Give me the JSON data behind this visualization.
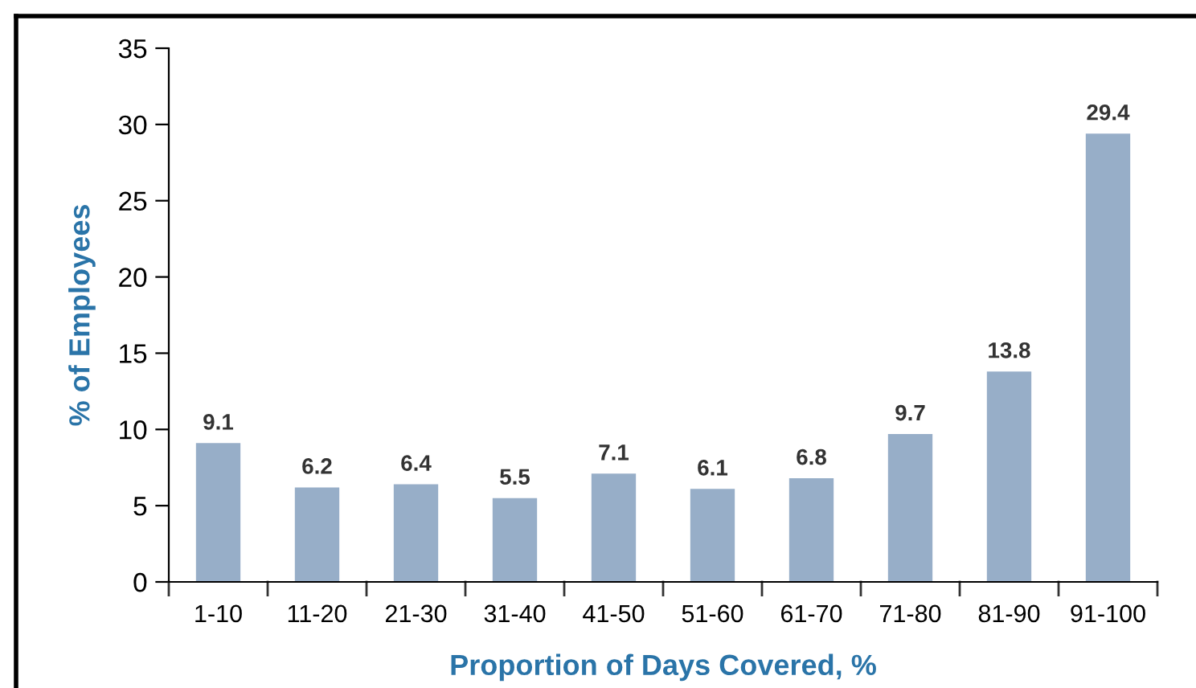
{
  "chart_data": {
    "type": "bar",
    "xlabel": "Proportion of Days Covered, %",
    "ylabel": "% of Employees",
    "categories": [
      "1-10",
      "11-20",
      "21-30",
      "31-40",
      "41-50",
      "51-60",
      "61-70",
      "71-80",
      "81-90",
      "91-100"
    ],
    "values": [
      9.1,
      6.2,
      6.4,
      5.5,
      7.1,
      6.1,
      6.8,
      9.7,
      13.8,
      29.4
    ],
    "color": "#97aec8",
    "ylim": [
      0,
      35
    ],
    "yticks": [
      0,
      5,
      10,
      15,
      20,
      25,
      30,
      35
    ],
    "grid": false,
    "data_labels": true
  }
}
